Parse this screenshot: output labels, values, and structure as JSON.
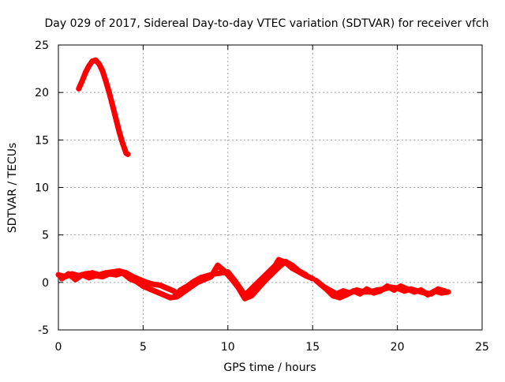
{
  "chart_data": {
    "type": "scatter",
    "title": "Day 029 of 2017, Sidereal Day-to-day VTEC variation (SDTVAR) for receiver vfch",
    "xlabel": "GPS time / hours",
    "ylabel": "SDTVAR / TECUs",
    "xlim": [
      0,
      25
    ],
    "ylim": [
      -5,
      25
    ],
    "x_ticks": [
      0,
      5,
      10,
      15,
      20,
      25
    ],
    "y_ticks": [
      -5,
      0,
      5,
      10,
      15,
      20,
      25
    ],
    "grid": true,
    "marker": "plus",
    "colors": {
      "series": "#ff0000",
      "grid": "#a0a0a0",
      "axis": "#000000"
    },
    "series": [
      {
        "name": "arc-high",
        "x": [
          1.2,
          1.4,
          1.6,
          1.8,
          2.0,
          2.2,
          2.4,
          2.6,
          2.8,
          3.0,
          3.2,
          3.4,
          3.6,
          3.8,
          4.0,
          4.1
        ],
        "y": [
          20.4,
          21.2,
          22.1,
          22.8,
          23.3,
          23.4,
          23.0,
          22.3,
          21.2,
          20.0,
          18.6,
          17.2,
          15.8,
          14.6,
          13.6,
          13.5
        ]
      },
      {
        "name": "low-variation-1",
        "x": [
          0.0,
          0.4,
          0.8,
          1.2,
          1.6,
          2.0,
          2.4,
          2.8,
          3.2,
          3.6,
          4.0,
          4.4,
          4.8,
          5.2,
          5.6,
          6.0,
          6.4,
          6.8,
          7.0,
          7.2,
          7.6,
          8.0,
          8.4,
          8.8,
          9.2,
          9.6,
          10.0,
          10.4,
          10.8,
          11.0,
          11.2,
          11.6,
          12.0,
          12.4,
          12.8,
          13.0,
          13.4,
          13.8,
          14.2,
          14.6,
          15.0
        ],
        "y": [
          0.8,
          0.6,
          0.9,
          0.7,
          0.9,
          1.0,
          0.8,
          1.0,
          1.1,
          1.2,
          1.0,
          0.6,
          0.3,
          0.0,
          -0.2,
          -0.3,
          -0.6,
          -0.9,
          -1.2,
          -0.8,
          -0.4,
          0.1,
          0.5,
          0.7,
          0.9,
          1.0,
          1.1,
          0.2,
          -0.8,
          -1.3,
          -1.0,
          -0.3,
          0.4,
          1.1,
          1.8,
          2.4,
          2.1,
          1.5,
          1.1,
          0.7,
          0.4
        ]
      },
      {
        "name": "low-variation-2",
        "x": [
          0.2,
          0.6,
          1.0,
          1.4,
          1.8,
          2.2,
          2.6,
          3.0,
          3.4,
          3.8,
          4.2,
          4.6,
          5.0,
          5.4,
          5.8,
          6.2,
          6.6,
          7.0,
          7.4,
          7.8,
          8.2,
          8.6,
          9.0,
          9.4,
          9.8,
          10.2,
          10.6,
          11.0,
          11.4,
          11.8,
          12.2,
          12.6,
          13.0,
          13.4,
          13.8,
          14.2,
          14.6
        ],
        "y": [
          0.4,
          0.9,
          0.3,
          0.8,
          0.5,
          0.7,
          0.6,
          0.9,
          0.8,
          1.0,
          0.4,
          0.1,
          -0.4,
          -0.7,
          -1.0,
          -1.3,
          -1.6,
          -1.5,
          -1.0,
          -0.5,
          0.0,
          0.3,
          0.6,
          1.8,
          1.2,
          0.4,
          -0.5,
          -1.7,
          -1.4,
          -0.6,
          0.2,
          0.9,
          1.6,
          2.2,
          1.8,
          1.2,
          0.8
        ]
      },
      {
        "name": "low-variation-3",
        "x": [
          15.2,
          15.6,
          16.0,
          16.4,
          16.8,
          17.2,
          17.6,
          18.0,
          18.4,
          18.8,
          19.2,
          19.6,
          20.0,
          20.4,
          20.8,
          21.2,
          21.6,
          22.0,
          22.4,
          22.8
        ],
        "y": [
          0.2,
          -0.4,
          -0.8,
          -1.2,
          -0.9,
          -1.1,
          -0.8,
          -1.0,
          -1.0,
          -0.8,
          -0.7,
          -0.5,
          -0.6,
          -0.9,
          -0.7,
          -0.9,
          -1.1,
          -1.2,
          -0.7,
          -0.9
        ]
      },
      {
        "name": "low-variation-4",
        "x": [
          15.4,
          15.8,
          16.2,
          16.6,
          17.0,
          17.4,
          17.8,
          18.2,
          18.6,
          19.0,
          19.4,
          19.8,
          20.2,
          20.6,
          21.0,
          21.4,
          21.8,
          22.2,
          22.6,
          23.0
        ],
        "y": [
          -0.1,
          -0.7,
          -1.4,
          -1.6,
          -1.3,
          -0.9,
          -1.2,
          -0.7,
          -1.1,
          -0.9,
          -0.4,
          -0.8,
          -0.4,
          -0.7,
          -1.0,
          -0.8,
          -1.3,
          -0.9,
          -1.1,
          -1.0
        ]
      }
    ]
  }
}
